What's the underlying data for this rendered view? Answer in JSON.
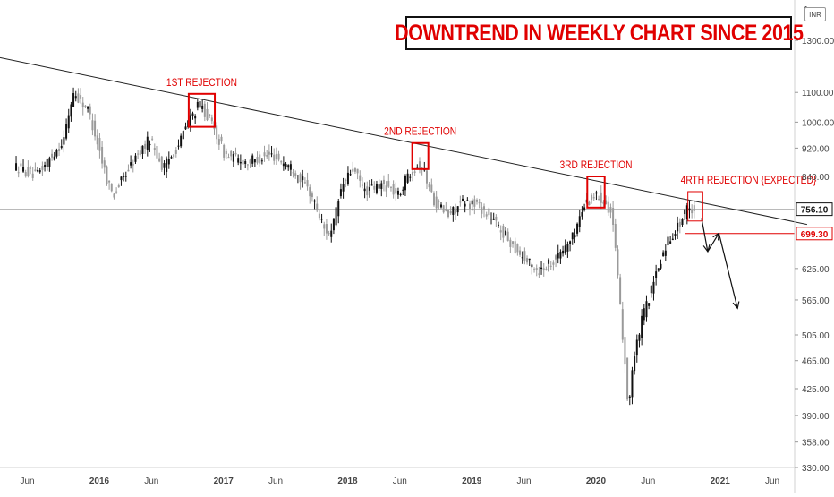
{
  "chart_data": {
    "type": "candlestick",
    "title": "DOWNTREND IN WEEKLY CHART SINCE 2015",
    "currency": "INR",
    "y_scale": "log",
    "ylim": [
      330,
      1500
    ],
    "y_ticks": [
      "1300.00",
      "1100.00",
      "1000.00",
      "920.00",
      "840.00",
      "625.00",
      "565.00",
      "505.00",
      "465.00",
      "425.00",
      "390.00",
      "358.00",
      "330.00"
    ],
    "x_ticks": [
      "Jun",
      "2016",
      "Jun",
      "2017",
      "Jun",
      "2018",
      "Jun",
      "2019",
      "Jun",
      "2020",
      "Jun",
      "2021",
      "Jun"
    ],
    "price_labels": [
      {
        "text": "756.10",
        "value": 756.1,
        "color": "#111111"
      },
      {
        "text": "699.30",
        "value": 699.3,
        "color": "#e00000"
      }
    ],
    "anchors": [
      {
        "date": 2015.33,
        "price": 868
      },
      {
        "date": 2015.5,
        "price": 840
      },
      {
        "date": 2015.72,
        "price": 940
      },
      {
        "date": 2015.8,
        "price": 1100
      },
      {
        "date": 2015.92,
        "price": 1040
      },
      {
        "date": 2016.06,
        "price": 845
      },
      {
        "date": 2016.12,
        "price": 790
      },
      {
        "date": 2016.28,
        "price": 880
      },
      {
        "date": 2016.42,
        "price": 950
      },
      {
        "date": 2016.52,
        "price": 860
      },
      {
        "date": 2016.65,
        "price": 930
      },
      {
        "date": 2016.72,
        "price": 1000
      },
      {
        "date": 2016.82,
        "price": 1060
      },
      {
        "date": 2016.92,
        "price": 990
      },
      {
        "date": 2017.02,
        "price": 900
      },
      {
        "date": 2017.2,
        "price": 880
      },
      {
        "date": 2017.4,
        "price": 900
      },
      {
        "date": 2017.58,
        "price": 860
      },
      {
        "date": 2017.72,
        "price": 790
      },
      {
        "date": 2017.82,
        "price": 710
      },
      {
        "date": 2017.88,
        "price": 700
      },
      {
        "date": 2017.96,
        "price": 810
      },
      {
        "date": 2018.05,
        "price": 860
      },
      {
        "date": 2018.15,
        "price": 800
      },
      {
        "date": 2018.3,
        "price": 820
      },
      {
        "date": 2018.42,
        "price": 790
      },
      {
        "date": 2018.5,
        "price": 850
      },
      {
        "date": 2018.6,
        "price": 875
      },
      {
        "date": 2018.7,
        "price": 780
      },
      {
        "date": 2018.82,
        "price": 740
      },
      {
        "date": 2018.92,
        "price": 770
      },
      {
        "date": 2019.05,
        "price": 770
      },
      {
        "date": 2019.18,
        "price": 730
      },
      {
        "date": 2019.32,
        "price": 680
      },
      {
        "date": 2019.45,
        "price": 640
      },
      {
        "date": 2019.55,
        "price": 620
      },
      {
        "date": 2019.7,
        "price": 650
      },
      {
        "date": 2019.82,
        "price": 690
      },
      {
        "date": 2019.92,
        "price": 770
      },
      {
        "date": 2020.0,
        "price": 790
      },
      {
        "date": 2020.08,
        "price": 780
      },
      {
        "date": 2020.14,
        "price": 740
      },
      {
        "date": 2020.2,
        "price": 560
      },
      {
        "date": 2020.24,
        "price": 470
      },
      {
        "date": 2020.27,
        "price": 395
      },
      {
        "date": 2020.3,
        "price": 450
      },
      {
        "date": 2020.38,
        "price": 530
      },
      {
        "date": 2020.48,
        "price": 600
      },
      {
        "date": 2020.58,
        "price": 680
      },
      {
        "date": 2020.68,
        "price": 720
      },
      {
        "date": 2020.75,
        "price": 760
      },
      {
        "date": 2020.8,
        "price": 756
      }
    ],
    "trendline": [
      {
        "date": 2015.2,
        "price": 1230
      },
      {
        "date": 2021.7,
        "price": 720
      }
    ],
    "horizontal_lines": [
      {
        "price": 756.1,
        "color": "#b0b0b0"
      },
      {
        "price": 699.3,
        "color": "#e00000"
      }
    ],
    "rejections": [
      {
        "label": "1ST REJECTION",
        "d0": 2016.72,
        "d1": 2016.93,
        "p_top": 1095,
        "p_bot": 985
      },
      {
        "label": "2ND REJECTION",
        "d0": 2018.52,
        "d1": 2018.65,
        "p_top": 935,
        "p_bot": 860
      },
      {
        "label": "3RD REJECTION",
        "d0": 2019.93,
        "d1": 2020.07,
        "p_top": 840,
        "p_bot": 760
      },
      {
        "label": "4RTH REJECTION {EXPECTED}",
        "d0": 2020.74,
        "d1": 2020.86,
        "p_top": 800,
        "p_bot": 728
      }
    ],
    "projection": [
      {
        "date": 2020.85,
        "price": 735
      },
      {
        "date": 2020.9,
        "price": 660
      },
      {
        "date": 2020.99,
        "price": 700
      },
      {
        "date": 2021.14,
        "price": 550
      }
    ],
    "colors": {
      "bull": "#111111",
      "bear": "#9a9a9a",
      "annotation": "#e00000",
      "trendline": "#222222"
    }
  }
}
